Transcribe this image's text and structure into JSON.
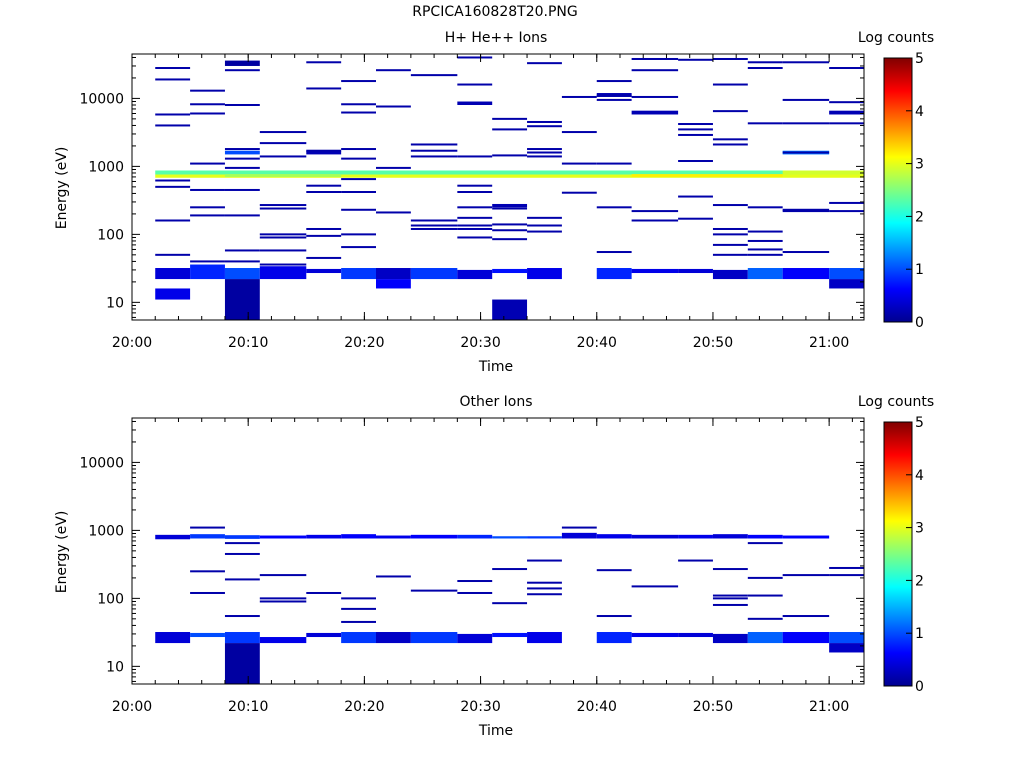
{
  "page_title": "RPCICA160828T20.PNG",
  "chart_data": [
    {
      "type": "heatmap",
      "title": "H+ He++ Ions",
      "xlabel": "Time",
      "ylabel": "Energy (eV)",
      "y_scale": "log",
      "ylim": [
        5.5,
        45000
      ],
      "xlim": [
        "20:00",
        "21:03"
      ],
      "x_ticks": [
        "20:00",
        "20:10",
        "20:20",
        "20:30",
        "20:40",
        "20:50",
        "21:00"
      ],
      "y_ticks": [
        "10",
        "100",
        "1000",
        "10000"
      ],
      "colorbar": {
        "label": "Log counts",
        "range": [
          0,
          5
        ],
        "ticks": [
          "0",
          "1",
          "2",
          "3",
          "4",
          "5"
        ]
      },
      "cells": [
        [
          "20:02",
          "20:05",
          22,
          32,
          0.4
        ],
        [
          "20:05",
          "20:08",
          22,
          36,
          0.8
        ],
        [
          "20:08",
          "20:11",
          22,
          32,
          1.0
        ],
        [
          "20:11",
          "20:15",
          22,
          34,
          0.5
        ],
        [
          "20:15",
          "20:18",
          27,
          31,
          0.4
        ],
        [
          "20:18",
          "20:21",
          22,
          32,
          0.9
        ],
        [
          "20:21",
          "20:24",
          22,
          32,
          0.3
        ],
        [
          "20:24",
          "20:28",
          22,
          32,
          0.9
        ],
        [
          "20:28",
          "20:31",
          22,
          30,
          0.4
        ],
        [
          "20:31",
          "20:34",
          27,
          31,
          0.7
        ],
        [
          "20:34",
          "20:37",
          22,
          32,
          0.5
        ],
        [
          "20:40",
          "20:43",
          22,
          32,
          0.8
        ],
        [
          "20:43",
          "20:47",
          27,
          31,
          0.5
        ],
        [
          "20:47",
          "20:50",
          27,
          31,
          0.4
        ],
        [
          "20:50",
          "20:53",
          22,
          30,
          0.3
        ],
        [
          "20:53",
          "20:56",
          22,
          32,
          1.1
        ],
        [
          "20:56",
          "21:00",
          22,
          32,
          0.6
        ],
        [
          "21:00",
          "21:03",
          22,
          32,
          1.0
        ],
        [
          "20:02",
          "20:05",
          11,
          16,
          0.5
        ],
        [
          "20:08",
          "20:11",
          5.5,
          22,
          0.1
        ],
        [
          "20:21",
          "20:24",
          16,
          22,
          0.6
        ],
        [
          "20:31",
          "20:34",
          5.5,
          11,
          0.2
        ],
        [
          "21:00",
          "21:03",
          16,
          22,
          0.3
        ],
        [
          "20:02",
          "21:03",
          680,
          760,
          3.0
        ],
        [
          "20:02",
          "21:03",
          760,
          870,
          2.3
        ],
        [
          "20:08",
          "20:18",
          700,
          770,
          2.7
        ],
        [
          "20:43",
          "20:56",
          700,
          770,
          3.2
        ],
        [
          "20:56",
          "21:03",
          760,
          870,
          2.9
        ],
        [
          "20:08",
          "20:11",
          30000,
          36000,
          0.1
        ],
        [
          "20:40",
          "20:43",
          10500,
          12000,
          0.2
        ],
        [
          "20:43",
          "20:47",
          5800,
          6600,
          0.2
        ],
        [
          "21:00",
          "21:03",
          5800,
          6600,
          0.2
        ],
        [
          "20:28",
          "20:31",
          8000,
          9000,
          0.2
        ],
        [
          "20:31",
          "20:34",
          250,
          280,
          0.2
        ],
        [
          "20:15",
          "20:18",
          1500,
          1700,
          0.2
        ],
        [
          "20:56",
          "21:00",
          1500,
          1700,
          1.2
        ],
        [
          "20:08",
          "20:11",
          1500,
          1700,
          1.0
        ]
      ],
      "lines": [
        [
          "20:02",
          "20:05",
          [
            28000,
            19000,
            5800,
            4000,
            620,
            500,
            160,
            50
          ]
        ],
        [
          "20:05",
          "20:08",
          [
            13000,
            8200,
            6000,
            1100,
            450,
            250,
            190,
            40
          ]
        ],
        [
          "20:08",
          "20:11",
          [
            26000,
            8000,
            1800,
            1300,
            950,
            450,
            190,
            58,
            40
          ]
        ],
        [
          "20:11",
          "20:15",
          [
            3200,
            2200,
            1400,
            270,
            240,
            100,
            90,
            58,
            36
          ]
        ],
        [
          "20:15",
          "20:18",
          [
            34000,
            14000,
            1700,
            520,
            420,
            120,
            95,
            45
          ]
        ],
        [
          "20:18",
          "20:21",
          [
            18000,
            8200,
            6200,
            1800,
            1300,
            650,
            420,
            230,
            100,
            65
          ]
        ],
        [
          "20:21",
          "20:24",
          [
            26000,
            7600,
            950,
            210
          ]
        ],
        [
          "20:24",
          "20:28",
          [
            22000,
            2100,
            1700,
            1400,
            160,
            135,
            120
          ]
        ],
        [
          "20:28",
          "20:31",
          [
            40000,
            16000,
            1400,
            520,
            420,
            250,
            175,
            135,
            120,
            90
          ]
        ],
        [
          "20:31",
          "20:34",
          [
            5000,
            3500,
            1450,
            240,
            140,
            115,
            85
          ]
        ],
        [
          "20:34",
          "20:37",
          [
            33000,
            4500,
            3900,
            1800,
            1600,
            1400,
            175,
            135,
            110
          ]
        ],
        [
          "20:37",
          "20:40",
          [
            10500,
            3200,
            1100,
            410
          ]
        ],
        [
          "20:40",
          "20:43",
          [
            18000,
            11000,
            9500,
            1100,
            250,
            55
          ]
        ],
        [
          "20:43",
          "20:47",
          [
            38000,
            26000,
            10500,
            220,
            160
          ]
        ],
        [
          "20:47",
          "20:50",
          [
            37000,
            4200,
            3500,
            2900,
            1200,
            360,
            170
          ]
        ],
        [
          "20:50",
          "20:53",
          [
            38000,
            16000,
            6500,
            2500,
            2100,
            270,
            120,
            100,
            70,
            50
          ]
        ],
        [
          "20:53",
          "20:56",
          [
            34000,
            28000,
            4300,
            250,
            110,
            80,
            60,
            50
          ]
        ],
        [
          "20:56",
          "21:00",
          [
            34000,
            9500,
            4300,
            1600,
            230,
            220,
            55
          ]
        ],
        [
          "21:00",
          "21:03",
          [
            28000,
            8800,
            4300,
            290,
            220
          ]
        ]
      ]
    },
    {
      "type": "heatmap",
      "title": "Other Ions",
      "xlabel": "Time",
      "ylabel": "Energy (eV)",
      "y_scale": "log",
      "ylim": [
        5.5,
        45000
      ],
      "xlim": [
        "20:00",
        "21:03"
      ],
      "x_ticks": [
        "20:00",
        "20:10",
        "20:20",
        "20:30",
        "20:40",
        "20:50",
        "21:00"
      ],
      "y_ticks": [
        "10",
        "100",
        "1000",
        "10000"
      ],
      "colorbar": {
        "label": "Log counts",
        "range": [
          0,
          5
        ],
        "ticks": [
          "0",
          "1",
          "2",
          "3",
          "4",
          "5"
        ]
      },
      "cells": [
        [
          "20:02",
          "20:05",
          22,
          32,
          0.4
        ],
        [
          "20:05",
          "20:08",
          27,
          31,
          1.0
        ],
        [
          "20:08",
          "20:11",
          22,
          32,
          0.9
        ],
        [
          "20:11",
          "20:15",
          22,
          27,
          0.5
        ],
        [
          "20:15",
          "20:18",
          27,
          31,
          0.4
        ],
        [
          "20:18",
          "20:21",
          22,
          32,
          0.9
        ],
        [
          "20:21",
          "20:24",
          22,
          32,
          0.3
        ],
        [
          "20:24",
          "20:28",
          22,
          32,
          0.9
        ],
        [
          "20:28",
          "20:31",
          22,
          30,
          0.4
        ],
        [
          "20:31",
          "20:34",
          27,
          31,
          0.7
        ],
        [
          "20:34",
          "20:37",
          22,
          32,
          0.5
        ],
        [
          "20:40",
          "20:43",
          22,
          32,
          0.8
        ],
        [
          "20:43",
          "20:47",
          27,
          31,
          0.5
        ],
        [
          "20:47",
          "20:50",
          27,
          31,
          0.4
        ],
        [
          "20:50",
          "20:53",
          22,
          30,
          0.3
        ],
        [
          "20:53",
          "20:56",
          22,
          32,
          1.1
        ],
        [
          "20:56",
          "21:00",
          22,
          32,
          0.6
        ],
        [
          "21:00",
          "21:03",
          22,
          32,
          1.0
        ],
        [
          "20:08",
          "20:11",
          5.5,
          22,
          0.1
        ],
        [
          "21:00",
          "21:03",
          16,
          22,
          0.3
        ],
        [
          "20:02",
          "20:05",
          740,
          860,
          0.4
        ],
        [
          "20:05",
          "20:08",
          760,
          880,
          0.9
        ],
        [
          "20:08",
          "20:11",
          750,
          850,
          0.9
        ],
        [
          "20:11",
          "20:15",
          760,
          840,
          0.6
        ],
        [
          "20:15",
          "20:18",
          760,
          860,
          0.5
        ],
        [
          "20:18",
          "20:21",
          760,
          880,
          0.6
        ],
        [
          "20:21",
          "20:24",
          760,
          840,
          0.5
        ],
        [
          "20:24",
          "20:28",
          760,
          860,
          0.6
        ],
        [
          "20:28",
          "20:31",
          760,
          860,
          0.8
        ],
        [
          "20:31",
          "20:34",
          760,
          820,
          1.0
        ],
        [
          "20:34",
          "20:37",
          760,
          820,
          0.9
        ],
        [
          "20:37",
          "20:40",
          760,
          920,
          0.4
        ],
        [
          "20:40",
          "20:43",
          760,
          880,
          0.5
        ],
        [
          "20:43",
          "20:47",
          760,
          860,
          0.4
        ],
        [
          "20:47",
          "20:50",
          760,
          860,
          0.5
        ],
        [
          "20:50",
          "20:53",
          760,
          880,
          0.4
        ],
        [
          "20:53",
          "20:56",
          760,
          860,
          0.6
        ],
        [
          "20:56",
          "21:00",
          760,
          840,
          0.6
        ]
      ],
      "lines": [
        [
          "20:05",
          "20:08",
          [
            1100,
            250,
            120
          ]
        ],
        [
          "20:08",
          "20:11",
          [
            650,
            450,
            190,
            55
          ]
        ],
        [
          "20:11",
          "20:15",
          [
            220,
            100,
            90
          ]
        ],
        [
          "20:15",
          "20:18",
          [
            120
          ]
        ],
        [
          "20:18",
          "20:21",
          [
            100,
            70,
            45
          ]
        ],
        [
          "20:21",
          "20:24",
          [
            210
          ]
        ],
        [
          "20:24",
          "20:28",
          [
            130
          ]
        ],
        [
          "20:28",
          "20:31",
          [
            180,
            120
          ]
        ],
        [
          "20:31",
          "20:34",
          [
            270,
            85
          ]
        ],
        [
          "20:34",
          "20:37",
          [
            360,
            170,
            140,
            115
          ]
        ],
        [
          "20:37",
          "20:40",
          [
            1100
          ]
        ],
        [
          "20:40",
          "20:43",
          [
            260,
            55
          ]
        ],
        [
          "20:43",
          "20:47",
          [
            150
          ]
        ],
        [
          "20:47",
          "20:50",
          [
            360
          ]
        ],
        [
          "20:50",
          "20:53",
          [
            270,
            110,
            100,
            80
          ]
        ],
        [
          "20:53",
          "20:56",
          [
            650,
            200,
            110,
            50
          ]
        ],
        [
          "20:56",
          "21:00",
          [
            220,
            55
          ]
        ],
        [
          "21:00",
          "21:03",
          [
            280,
            220
          ]
        ]
      ]
    }
  ]
}
